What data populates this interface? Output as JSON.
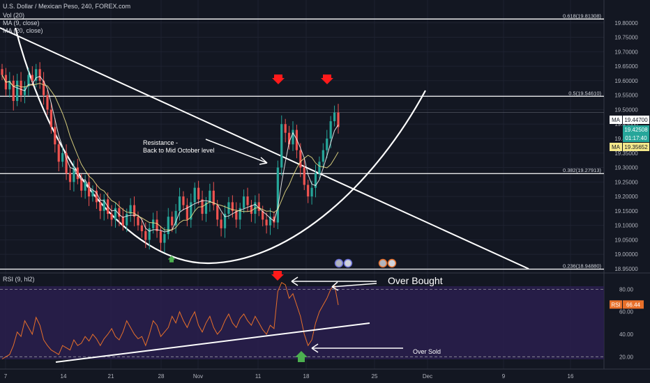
{
  "header": {
    "symbol": "U.S. Dollar / Mexican Peso, 240, FOREX.com",
    "indicators": [
      "Vol (20)",
      "MA (9, close)",
      "MA (20, close)"
    ]
  },
  "colors": {
    "background": "#131722",
    "up": "#26a69a",
    "down": "#ef5350",
    "rsi": "#e8702a",
    "rsi_band": "#2a1f4e",
    "ma_fast": "#ffffff",
    "ma_slow": "#f5e98b",
    "arrow_red": "#ff1a1a",
    "arrow_green": "#4caf50"
  },
  "chart_data": {
    "type": "candlestick",
    "price_ylim": [
      18.95,
      19.85
    ],
    "price_ticks": [
      "19.80000",
      "19.75000",
      "19.70000",
      "19.65000",
      "19.60000",
      "19.55000",
      "19.50000",
      "19.45000",
      "19.40000",
      "19.35000",
      "19.30000",
      "19.25000",
      "19.20000",
      "19.15000",
      "19.10000",
      "19.05000",
      "19.00000",
      "18.95000"
    ],
    "x_ticks": [
      "7",
      "14",
      "21",
      "28",
      "Nov",
      "11",
      "18",
      "25",
      "Dec",
      "9",
      "16"
    ],
    "close": [
      19.62,
      19.57,
      19.6,
      19.53,
      19.6,
      19.55,
      19.58,
      19.62,
      19.6,
      19.64,
      19.6,
      19.55,
      19.5,
      19.44,
      19.38,
      19.32,
      19.35,
      19.28,
      19.25,
      19.3,
      19.26,
      19.22,
      19.25,
      19.2,
      19.22,
      19.18,
      19.15,
      19.19,
      19.14,
      19.12,
      19.16,
      19.13,
      19.1,
      19.14,
      19.17,
      19.13,
      19.1,
      19.08,
      19.05,
      19.09,
      19.12,
      19.08,
      19.04,
      19.07,
      19.13,
      19.1,
      19.15,
      19.2,
      19.17,
      19.12,
      19.18,
      19.23,
      19.19,
      19.14,
      19.18,
      19.22,
      19.17,
      19.12,
      19.09,
      19.14,
      19.18,
      19.15,
      19.12,
      19.16,
      19.2,
      19.17,
      19.14,
      19.18,
      19.15,
      19.12,
      19.1,
      19.13,
      19.11,
      19.3,
      19.45,
      19.42,
      19.38,
      19.43,
      19.36,
      19.3,
      19.24,
      19.2,
      19.23,
      19.28,
      19.32,
      19.36,
      19.4,
      19.46,
      19.49,
      19.44
    ],
    "fib_levels": [
      {
        "label": "0.618(19.81308)",
        "price": 19.8131
      },
      {
        "label": "0.5(19.54610)",
        "price": 19.5461
      },
      {
        "label": "0.382(19.27913)",
        "price": 19.2791
      },
      {
        "label": "0.236(18.94880)",
        "price": 18.9488
      }
    ],
    "price_tags": [
      {
        "label": "MA",
        "value": "19.44700",
        "style": "white"
      },
      {
        "label": "",
        "value": "19.42508",
        "style": "teal"
      },
      {
        "label": "",
        "value": "01:17:40",
        "style": "teal"
      },
      {
        "label": "MA",
        "value": "19.35652",
        "style": "yellow"
      }
    ],
    "rsi": {
      "label": "RSI (9, hl2)",
      "ylim": [
        14,
        92
      ],
      "ticks": [
        "80.00",
        "60.00",
        "40.00",
        "20.00"
      ],
      "bands": [
        80,
        20
      ],
      "current": "66.44",
      "values": [
        18,
        20,
        22,
        30,
        42,
        38,
        52,
        46,
        40,
        55,
        48,
        35,
        30,
        26,
        24,
        22,
        30,
        28,
        26,
        35,
        30,
        32,
        38,
        34,
        40,
        36,
        30,
        36,
        40,
        45,
        38,
        35,
        42,
        52,
        46,
        40,
        36,
        38,
        30,
        40,
        52,
        48,
        38,
        42,
        46,
        56,
        50,
        60,
        52,
        46,
        54,
        60,
        48,
        42,
        50,
        56,
        46,
        40,
        44,
        52,
        58,
        50,
        46,
        54,
        58,
        52,
        48,
        56,
        50,
        44,
        40,
        48,
        45,
        78,
        86,
        84,
        72,
        76,
        66,
        56,
        40,
        30,
        35,
        50,
        60,
        66,
        72,
        80,
        84,
        66
      ]
    },
    "annotations": {
      "resistance_line1": "Resistance -",
      "resistance_line2": "Back to Mid October level",
      "over_bought": "Over Bought",
      "over_sold": "Over Sold"
    }
  }
}
